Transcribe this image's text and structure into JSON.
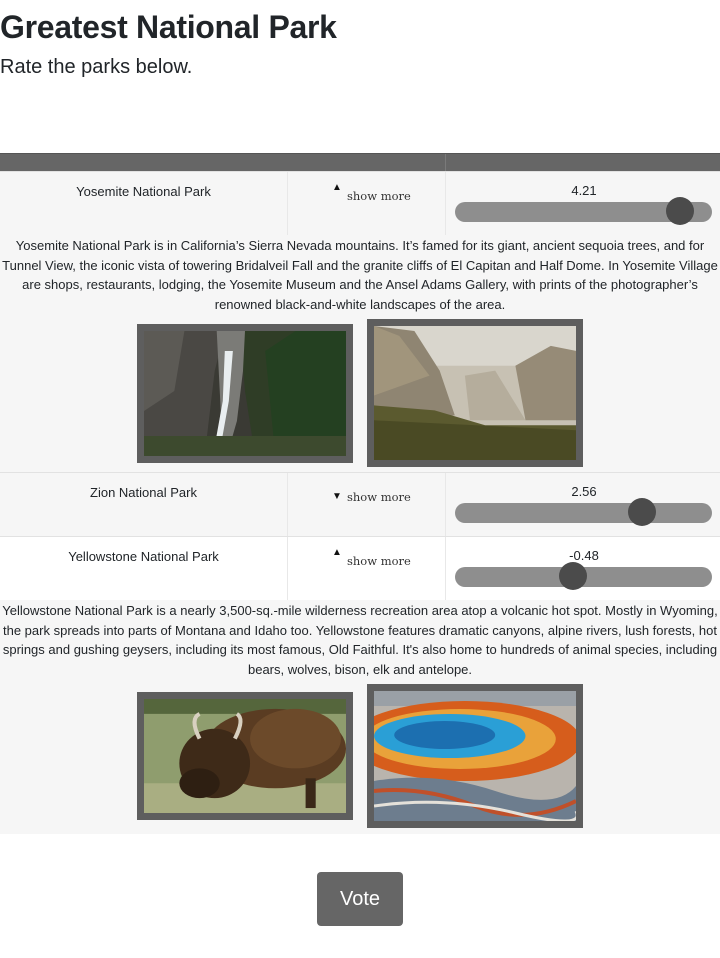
{
  "page": {
    "title": "Greatest National Park",
    "subtitle": "Rate the parks below."
  },
  "parks": [
    {
      "name": "Yosemite National Park",
      "toggle_label": "show more",
      "expanded": true,
      "rating": "4.21",
      "rating_value": 4.21,
      "description": "Yosemite National Park is in California’s Sierra Nevada mountains. It’s famed for its giant, ancient sequoia trees, and for Tunnel View, the iconic vista of towering Bridalveil Fall and the granite cliffs of El Capitan and Half Dome. In Yosemite Village are shops, restaurants, lodging, the Yosemite Museum and the Ansel Adams Gallery, with prints of the photographer’s renowned black-and-white landscapes of the area."
    },
    {
      "name": "Zion National Park",
      "toggle_label": "show more",
      "expanded": false,
      "rating": "2.56",
      "rating_value": 2.56
    },
    {
      "name": "Yellowstone National Park",
      "toggle_label": "show more",
      "expanded": true,
      "rating": "-0.48",
      "rating_value": -0.48,
      "description": "Yellowstone National Park is a nearly 3,500-sq.-mile wilderness recreation area atop a volcanic hot spot. Mostly in Wyoming, the park spreads into parts of Montana and Idaho too. Yellowstone features dramatic canyons, alpine rivers, lush forests, hot springs and gushing geysers, including its most famous, Old Faithful. It's also home to hundreds of animal species, including bears, wolves, bison, elk and antelope."
    }
  ],
  "slider": {
    "min": -5,
    "max": 5
  },
  "vote": {
    "label": "Vote"
  },
  "icons": {
    "expanded_arrow": "triangle-up-icon",
    "collapsed_arrow": "triangle-down-icon"
  }
}
